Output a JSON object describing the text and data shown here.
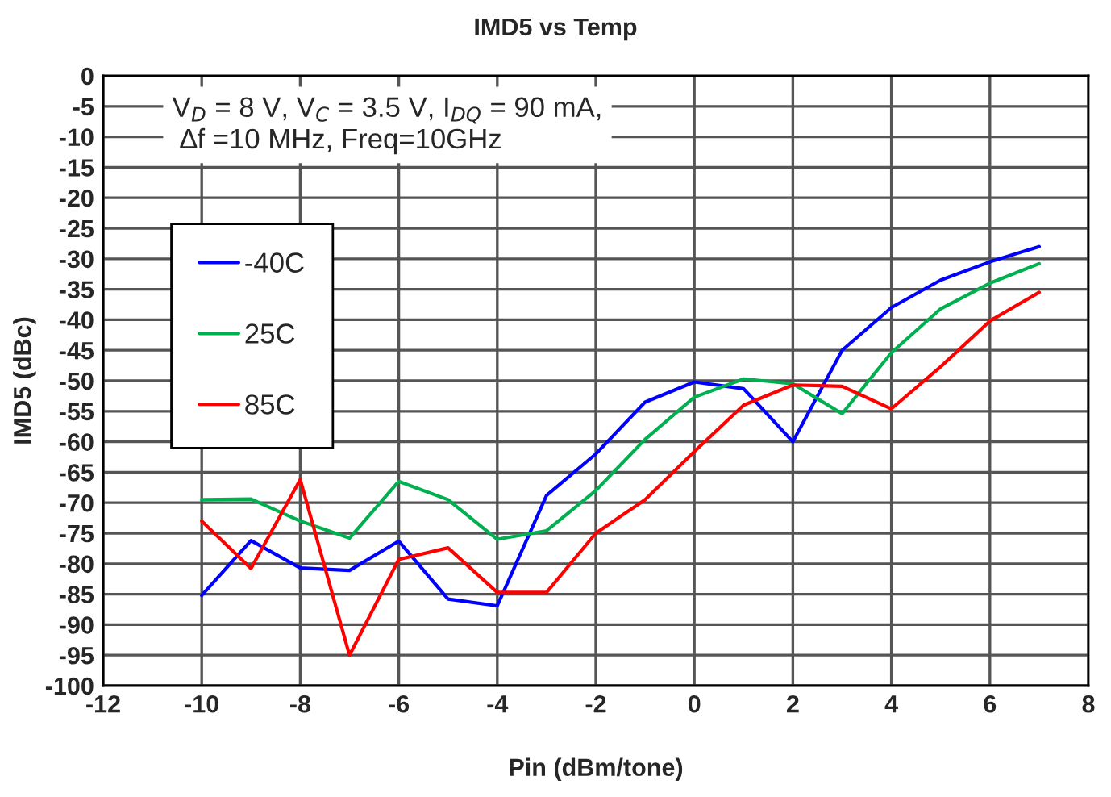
{
  "chart_data": {
    "type": "line",
    "title": "IMD5 vs Temp",
    "xlabel": "Pin (dBm/tone)",
    "ylabel": "IMD5 (dBc)",
    "annotations": [
      "V$_{D}$ = 8 V, V$_{C}$ = 3.5 V, I$_{DQ}$ = 90 mA,\n ∆f =10 MHz, Freq=10GHz"
    ],
    "x": [
      -10,
      -9,
      -8,
      -7,
      -6,
      -5,
      -4,
      -3,
      -2,
      -1,
      0,
      1,
      2,
      3,
      4,
      5,
      6,
      7
    ],
    "series": [
      {
        "name": "-40C",
        "color": "#0000ff",
        "values": [
          -85.2,
          -76.2,
          -80.7,
          -81.1,
          -76.3,
          -85.8,
          -86.9,
          -68.8,
          -62,
          -53.5,
          -50.2,
          -51.3,
          -60,
          -45,
          -38,
          -33.5,
          -30.5,
          -28
        ]
      },
      {
        "name": "25C",
        "color": "#00b050",
        "values": [
          -69.5,
          -69.4,
          -73,
          -75.8,
          -66.5,
          -69.5,
          -76,
          -74.6,
          -68,
          -59.6,
          -52.7,
          -49.7,
          -50.5,
          -55.4,
          -45.4,
          -38.2,
          -34,
          -30.8
        ]
      },
      {
        "name": "85C",
        "color": "#ff0000",
        "values": [
          -73,
          -80.8,
          -66.2,
          -95,
          -79.3,
          -77.4,
          -84.7,
          -84.7,
          -75,
          -69.5,
          -61.6,
          -54,
          -50.7,
          -50.9,
          -54.6,
          -47.7,
          -40.2,
          -35.5
        ]
      }
    ],
    "xlim": [
      -12,
      8
    ],
    "xticks": [
      -12,
      -10,
      -8,
      -6,
      -4,
      -2,
      0,
      2,
      4,
      6,
      8
    ],
    "ylim": [
      -100,
      0
    ],
    "yticks": [
      -100,
      -95,
      -90,
      -85,
      -80,
      -75,
      -70,
      -65,
      -60,
      -55,
      -50,
      -45,
      -40,
      -35,
      -30,
      -25,
      -20,
      -15,
      -10,
      -5,
      0
    ],
    "grid": true,
    "legend": "top left",
    "line_style": "solid",
    "marker": "none"
  }
}
